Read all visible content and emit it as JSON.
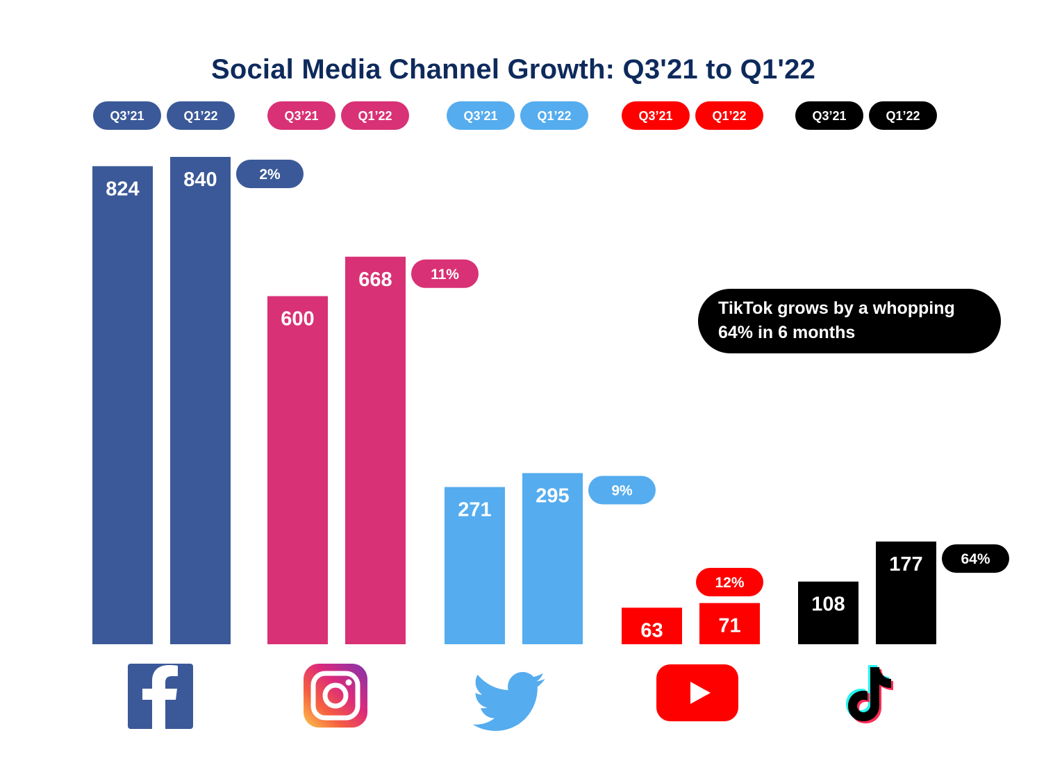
{
  "chart_data": {
    "type": "bar",
    "title": "Social Media Channel Growth: Q3'21 to Q1'22",
    "series_labels": [
      "Q3’21",
      "Q1’22"
    ],
    "groups": [
      {
        "channel": "facebook-icon",
        "color": "#3b5998",
        "values": [
          824,
          840
        ],
        "growth": "2%"
      },
      {
        "channel": "instagram-icon",
        "color": "#d93175",
        "values": [
          600,
          668
        ],
        "growth": "11%"
      },
      {
        "channel": "twitter-icon",
        "color": "#55acee",
        "values": [
          271,
          295
        ],
        "growth": "9%"
      },
      {
        "channel": "youtube-icon",
        "color": "#ff0000",
        "values": [
          63,
          71
        ],
        "growth": "12%"
      },
      {
        "channel": "tiktok-icon",
        "color": "#000000",
        "values": [
          108,
          177
        ],
        "growth": "64%"
      }
    ],
    "annotation": [
      "TikTok grows by a whopping",
      "64% in 6 months"
    ]
  }
}
